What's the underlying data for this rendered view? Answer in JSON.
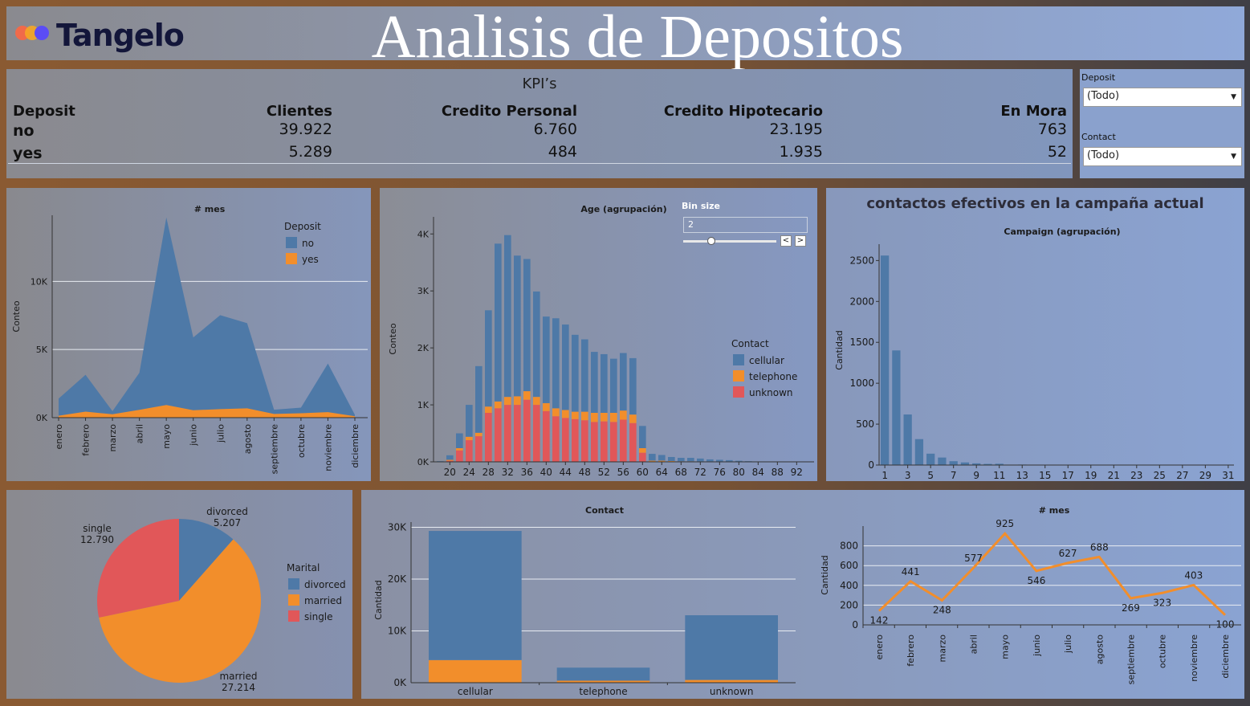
{
  "header": {
    "logo_text": "Tangelo",
    "title": "Analisis de Depositos"
  },
  "colors": {
    "blue": "#4e79a7",
    "orange": "#f28e2b",
    "red": "#e15759",
    "logo_red": "#f06a4a",
    "logo_orange": "#f5a623",
    "logo_purple": "#5b4cf5"
  },
  "kpi": {
    "title": "KPI’s",
    "headers": [
      "Deposit",
      "Clientes",
      "Credito Personal",
      "Credito Hipotecario",
      "En Mora"
    ],
    "rows": [
      [
        "no",
        "39.922",
        "6.760",
        "23.195",
        "763"
      ],
      [
        "yes",
        "5.289",
        "484",
        "1.935",
        "52"
      ]
    ]
  },
  "filters": [
    {
      "label": "Deposit",
      "value": "(Todo)"
    },
    {
      "label": "Contact",
      "value": "(Todo)"
    }
  ],
  "bin_size": {
    "label": "Bin size",
    "value": "2",
    "slider_fraction": 0.3
  },
  "campaign_title": "contactos efectivos en la campaña actual",
  "chart_data": [
    {
      "type": "area",
      "title": "# mes",
      "ylabel": "Conteo",
      "categories": [
        "enero",
        "febrero",
        "marzo",
        "abril",
        "mayo",
        "junio",
        "julio",
        "agosto",
        "septiembre",
        "octubre",
        "noviembre",
        "diciembre"
      ],
      "ylim": [
        0,
        14500
      ],
      "yticks": [
        {
          "v": 0,
          "label": "0K"
        },
        {
          "v": 5000,
          "label": "5K"
        },
        {
          "v": 10000,
          "label": "10K"
        }
      ],
      "legend_title": "Deposit",
      "series": [
        {
          "name": "no",
          "values": [
            1261,
            2708,
            229,
            2718,
            13766,
            5341,
            6895,
            6247,
            310,
            415,
            3567,
            114
          ]
        },
        {
          "name": "yes",
          "values": [
            142,
            441,
            248,
            577,
            925,
            546,
            627,
            688,
            269,
            323,
            403,
            100
          ]
        }
      ]
    },
    {
      "type": "bar",
      "title": "Age (agrupación)",
      "ylabel": "Conteo",
      "stacked": true,
      "x": [
        18,
        20,
        22,
        24,
        26,
        28,
        30,
        32,
        34,
        36,
        38,
        40,
        42,
        44,
        46,
        48,
        50,
        52,
        54,
        56,
        58,
        60,
        62,
        64,
        66,
        68,
        70,
        72,
        74,
        76,
        78,
        80,
        82,
        84,
        86,
        88,
        90,
        92,
        94
      ],
      "xticks": [
        20,
        24,
        28,
        32,
        36,
        40,
        44,
        48,
        52,
        56,
        60,
        64,
        68,
        72,
        76,
        80,
        84,
        88,
        92
      ],
      "ylim": [
        0,
        4300
      ],
      "yticks": [
        {
          "v": 0,
          "label": "0K"
        },
        {
          "v": 1000,
          "label": "1K"
        },
        {
          "v": 2000,
          "label": "2K"
        },
        {
          "v": 3000,
          "label": "3K"
        },
        {
          "v": 4000,
          "label": "4K"
        }
      ],
      "legend_title": "Contact",
      "series": [
        {
          "name": "cellular",
          "values": [
            10,
            80,
            260,
            560,
            1170,
            1690,
            2770,
            2840,
            2470,
            2320,
            1850,
            1520,
            1580,
            1500,
            1350,
            1270,
            1070,
            1030,
            950,
            1010,
            990,
            390,
            120,
            100,
            70,
            60,
            60,
            50,
            35,
            30,
            25,
            15,
            10,
            5,
            5,
            3,
            2,
            1,
            1
          ]
        },
        {
          "name": "telephone",
          "values": [
            2,
            15,
            40,
            60,
            60,
            110,
            120,
            140,
            150,
            150,
            140,
            140,
            140,
            140,
            130,
            150,
            160,
            150,
            160,
            160,
            150,
            80,
            20,
            20,
            15,
            10,
            10,
            8,
            8,
            6,
            5,
            4,
            2,
            2,
            1,
            1,
            0,
            0,
            0
          ]
        },
        {
          "name": "unknown",
          "values": [
            0,
            20,
            200,
            380,
            450,
            860,
            940,
            1000,
            1000,
            1090,
            1000,
            890,
            800,
            770,
            750,
            730,
            700,
            710,
            700,
            740,
            680,
            160,
            0,
            0,
            0,
            0,
            0,
            0,
            0,
            0,
            0,
            0,
            0,
            0,
            0,
            0,
            0,
            0,
            0
          ]
        }
      ]
    },
    {
      "type": "bar",
      "title": "Campaign (agrupación)",
      "ylabel": "Cantidad",
      "x": [
        1,
        2,
        3,
        4,
        5,
        6,
        7,
        8,
        9,
        10,
        11,
        12,
        13,
        14,
        15,
        16,
        17,
        18,
        19,
        20,
        21,
        22,
        23,
        24,
        25,
        26,
        27,
        28,
        29,
        30,
        31
      ],
      "xticks": [
        1,
        3,
        5,
        7,
        9,
        11,
        13,
        15,
        17,
        19,
        21,
        23,
        25,
        27,
        29,
        31
      ],
      "values": [
        2561,
        1401,
        618,
        317,
        139,
        92,
        47,
        32,
        21,
        14,
        16,
        2,
        6,
        4,
        4,
        2,
        1,
        0,
        0,
        0,
        0,
        0,
        0,
        0,
        0,
        0,
        0,
        0,
        0,
        0,
        0
      ],
      "ylim": [
        0,
        2700
      ],
      "yticks": [
        {
          "v": 0,
          "label": "0"
        },
        {
          "v": 500,
          "label": "500"
        },
        {
          "v": 1000,
          "label": "1000"
        },
        {
          "v": 1500,
          "label": "1500"
        },
        {
          "v": 2000,
          "label": "2000"
        },
        {
          "v": 2500,
          "label": "2500"
        }
      ]
    },
    {
      "type": "pie",
      "legend_title": "Marital",
      "slices": [
        {
          "name": "divorced",
          "value": 5207,
          "label": "5.207"
        },
        {
          "name": "married",
          "value": 27214,
          "label": "27.214"
        },
        {
          "name": "single",
          "value": 12790,
          "label": "12.790"
        }
      ]
    },
    {
      "type": "bar",
      "title": "Contact",
      "ylabel": "Cantidad",
      "stacked": true,
      "categories": [
        "cellular",
        "telephone",
        "unknown"
      ],
      "ylim": [
        0,
        31000
      ],
      "yticks": [
        {
          "v": 0,
          "label": "0K"
        },
        {
          "v": 10000,
          "label": "10K"
        },
        {
          "v": 20000,
          "label": "20K"
        },
        {
          "v": 30000,
          "label": "30K"
        }
      ],
      "series": [
        {
          "name": "no",
          "values": [
            24916,
            2516,
            12490
          ]
        },
        {
          "name": "yes",
          "values": [
            4369,
            390,
            530
          ]
        }
      ]
    },
    {
      "type": "line",
      "title": "# mes",
      "ylabel": "Cantidad",
      "categories": [
        "enero",
        "febrero",
        "marzo",
        "abril",
        "mayo",
        "junio",
        "julio",
        "agosto",
        "septiembre",
        "octubre",
        "noviembre",
        "diciembre"
      ],
      "values": [
        142,
        441,
        248,
        577,
        925,
        546,
        627,
        688,
        269,
        323,
        403,
        100
      ],
      "labels": [
        "142",
        "441",
        "248",
        "577",
        "925",
        "546",
        "627",
        "688",
        "269",
        "323",
        "403",
        "100"
      ],
      "ylim": [
        0,
        1000
      ],
      "yticks": [
        {
          "v": 0,
          "label": "0"
        },
        {
          "v": 200,
          "label": "200"
        },
        {
          "v": 400,
          "label": "400"
        },
        {
          "v": 600,
          "label": "600"
        },
        {
          "v": 800,
          "label": "800"
        }
      ]
    }
  ]
}
